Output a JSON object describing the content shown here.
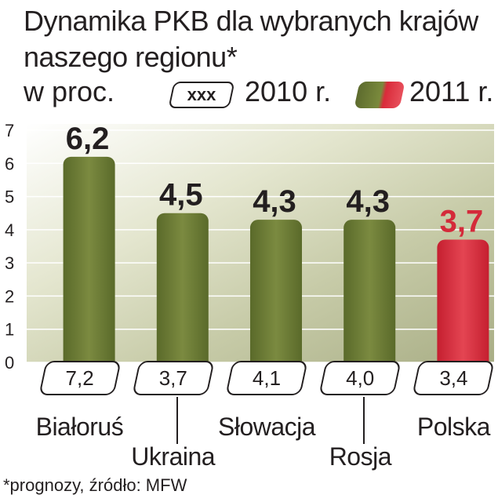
{
  "title_line1": "Dynamika PKB dla wybranych krajów",
  "title_line2": "naszego regionu*",
  "subtitle": "w proc.",
  "legend": {
    "box_label": "xxx",
    "label_2010": "2010 r.",
    "label_2011": "2011 r."
  },
  "colors": {
    "bar_default": "#6b7a34",
    "bar_highlight": "#d42a3a",
    "highlight_text": "#d42a3a",
    "text": "#231f20"
  },
  "footnote": "*prognozy, źródło: MFW",
  "chart_data": {
    "type": "bar",
    "title": "Dynamika PKB dla wybranych krajów naszego regionu*",
    "ylabel": "w proc.",
    "ylim": [
      0,
      7
    ],
    "yticks": [
      "0",
      "1",
      "2",
      "3",
      "4",
      "5",
      "6",
      "7"
    ],
    "grid": true,
    "categories": [
      "Białoruś",
      "Ukraina",
      "Słowacja",
      "Rosja",
      "Polska"
    ],
    "series": [
      {
        "name": "2011 r.",
        "values": [
          6.2,
          4.5,
          4.3,
          4.3,
          3.7
        ],
        "labels": [
          "6,2",
          "4,5",
          "4,3",
          "4,3",
          "3,7"
        ]
      },
      {
        "name": "2010 r.",
        "values": [
          7.2,
          3.7,
          4.1,
          4.0,
          3.4
        ],
        "labels": [
          "7,2",
          "3,7",
          "4,1",
          "4,0",
          "3,4"
        ]
      }
    ],
    "highlight_category": "Polska"
  }
}
